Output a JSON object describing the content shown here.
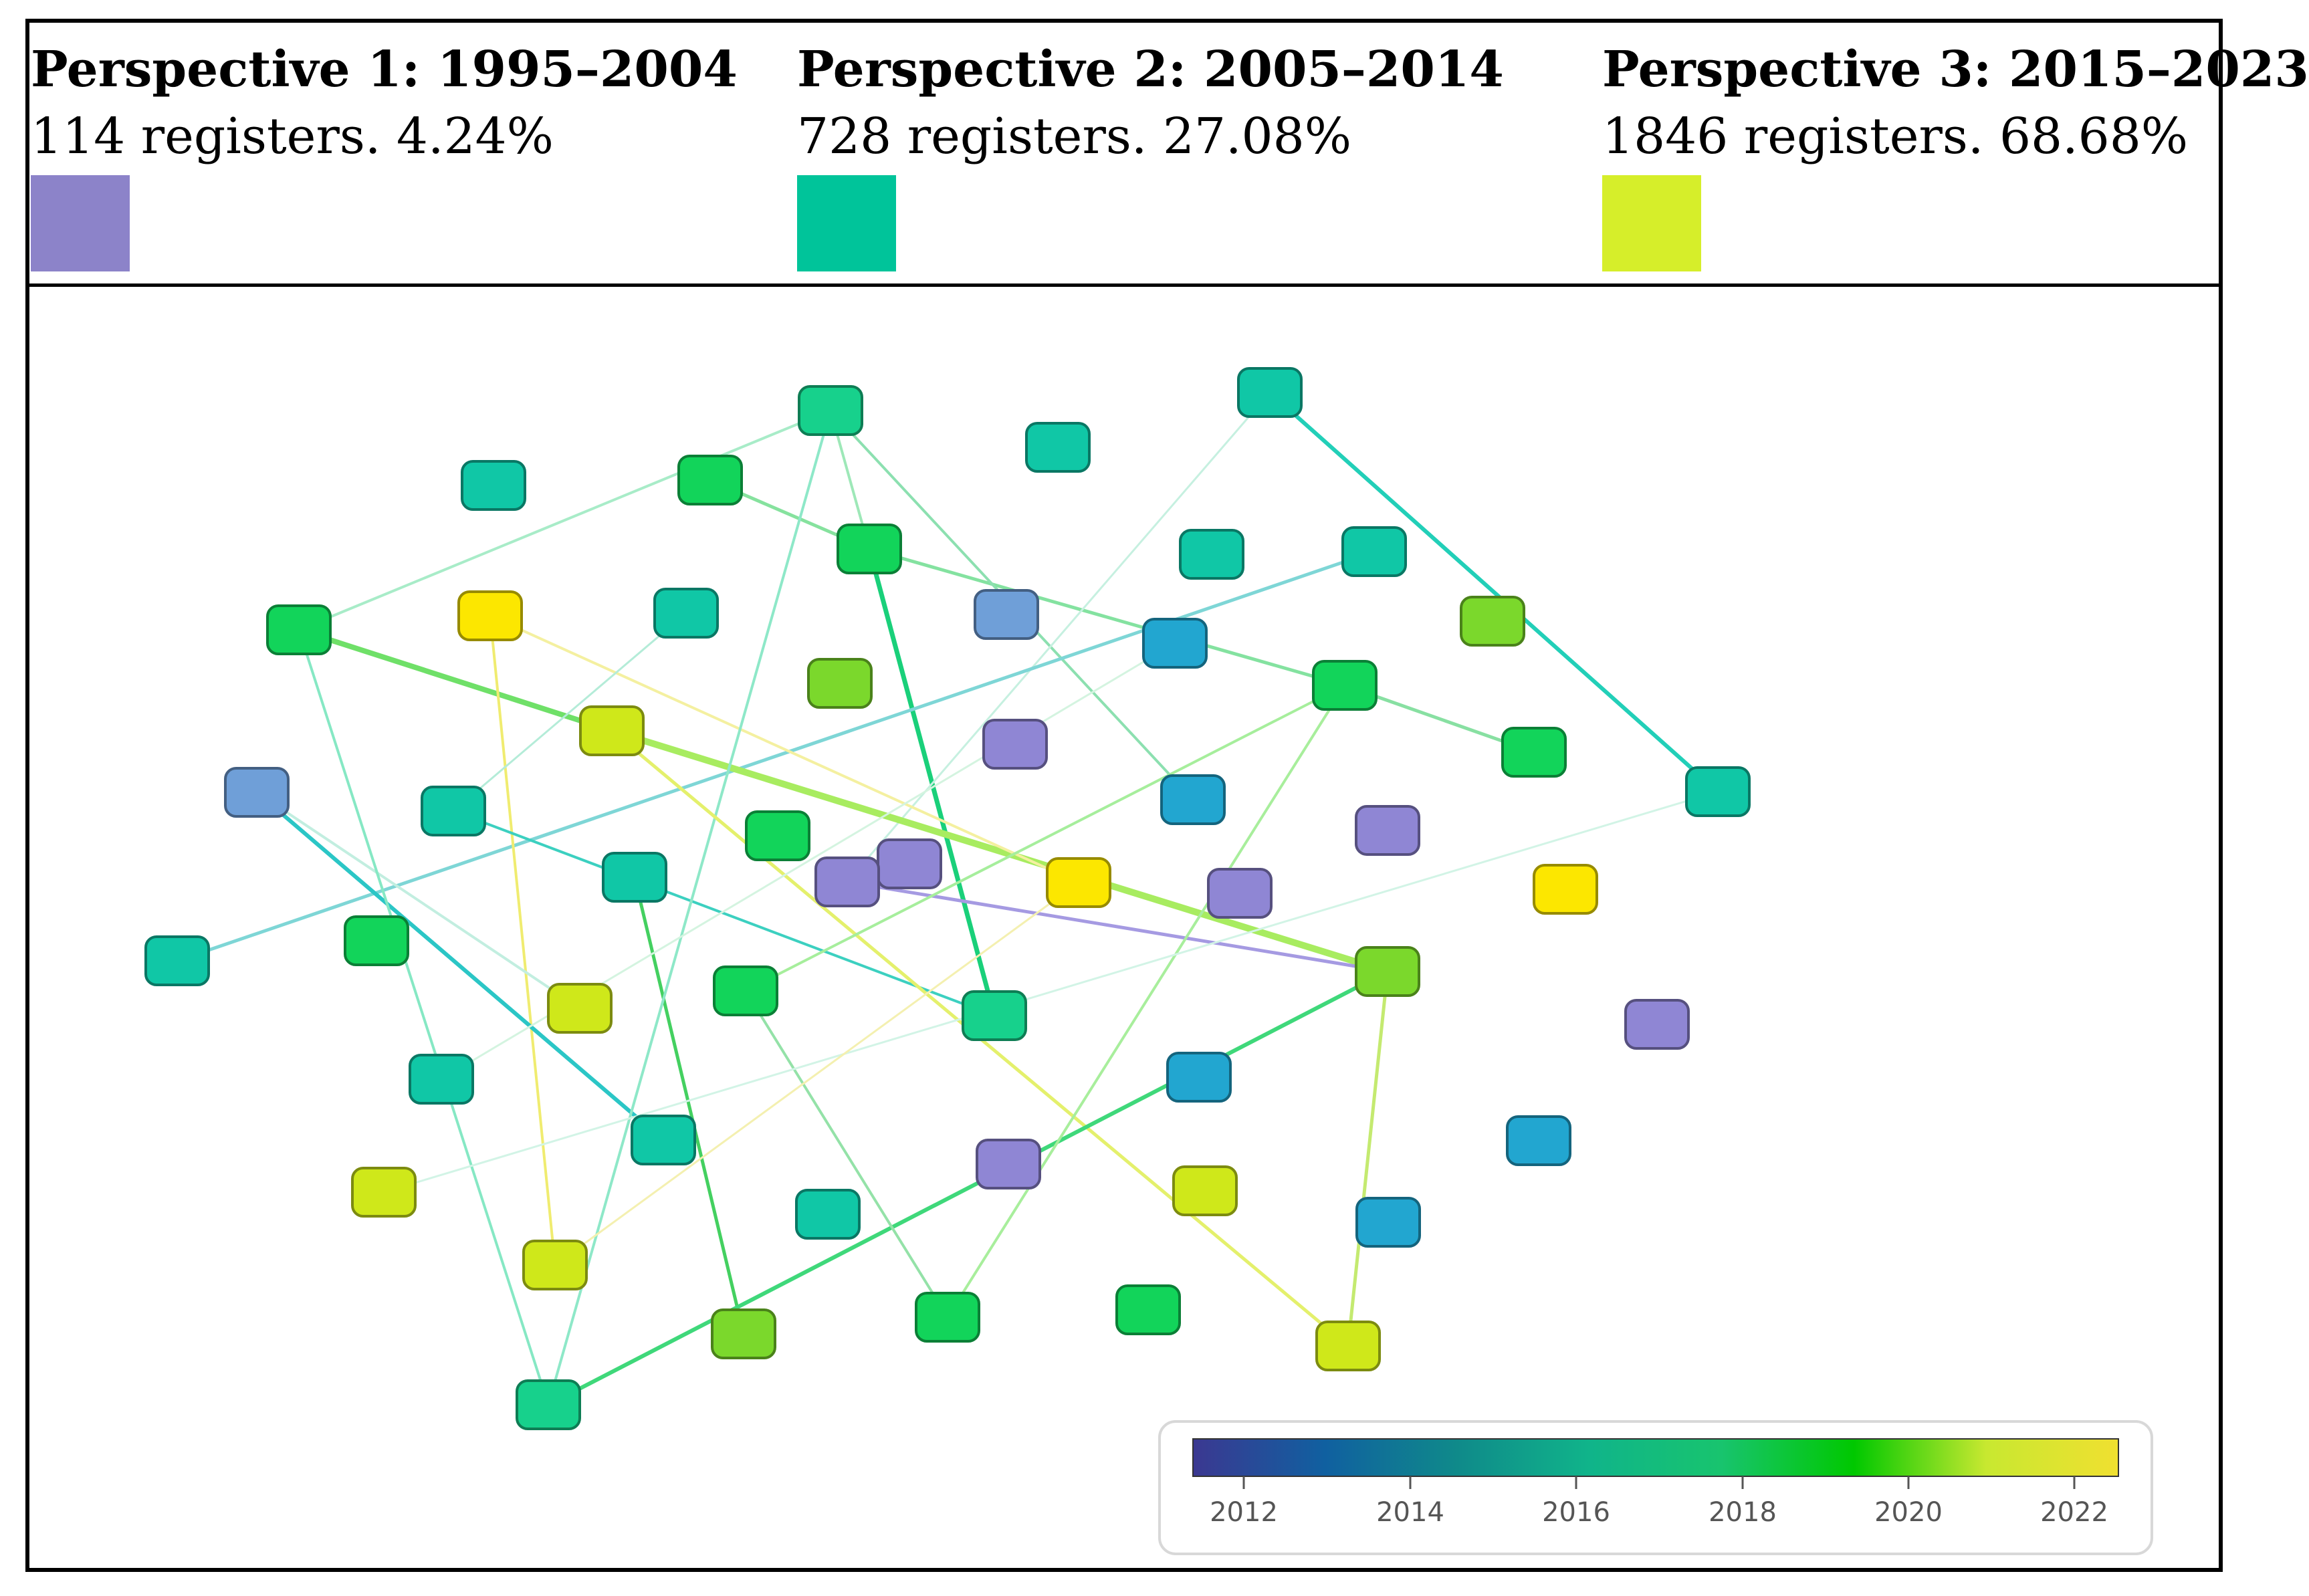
{
  "perspectives": [
    {
      "title": "Perspective 1: 1995–2004",
      "subtitle": "114 registers. 4.24%",
      "color": "#8c83c9"
    },
    {
      "title": "Perspective 2: 2005–2014",
      "subtitle": "728 registers. 27.08%",
      "color": "#00c49a"
    },
    {
      "title": "Perspective 3: 2015–2023",
      "subtitle": "1846 registers. 68.68%",
      "color": "#d6ee2a"
    }
  ],
  "colorbar": {
    "ticks": [
      "2012",
      "2014",
      "2016",
      "2018",
      "2020",
      "2022"
    ],
    "stops": [
      "#3b3891",
      "#1060a0",
      "#0f8a8a",
      "#10b48a",
      "#18c46e",
      "#00c800",
      "#c8e830",
      "#f0e030"
    ]
  },
  "node_colors": {
    "purple": "#8f86d4",
    "steelblue": "#6f9fd8",
    "blue": "#22a6d0",
    "teal": "#10c7a6",
    "teal2": "#17d18c",
    "green": "#12d45a",
    "lime": "#7bd82c",
    "yellowgreen": "#cfe81a",
    "yellow": "#fce700"
  }
}
